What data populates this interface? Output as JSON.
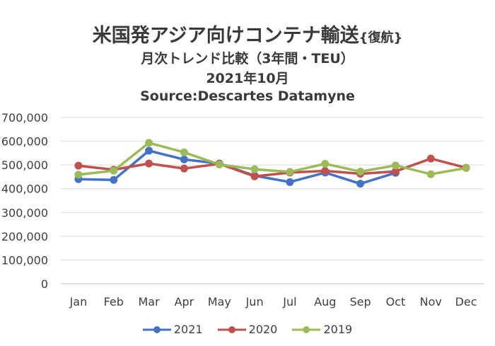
{
  "chart_data": {
    "type": "line",
    "title": "米国発アジア向けコンテナ輸送",
    "title_suffix": "{復航}",
    "subtitle_lines": [
      "月次トレンド比較（3年間・TEU）",
      "2021年10月",
      "Source:Descartes Datamyne"
    ],
    "categories": [
      "Jan",
      "Feb",
      "Mar",
      "Apr",
      "May",
      "Jun",
      "Jul",
      "Aug",
      "Sep",
      "Oct",
      "Nov",
      "Dec"
    ],
    "ylim": [
      0,
      700000
    ],
    "yticks": [
      "0",
      "100,000",
      "200,000",
      "300,000",
      "400,000",
      "500,000",
      "600,000",
      "700,000"
    ],
    "grid": true,
    "legend_position": "bottom",
    "series": [
      {
        "name": "2021",
        "color": "#4472C4",
        "values": [
          440000,
          437000,
          560000,
          523000,
          506000,
          455000,
          428000,
          468000,
          421000,
          467000,
          null,
          null
        ]
      },
      {
        "name": "2020",
        "color": "#C0504D",
        "values": [
          497000,
          480000,
          506000,
          485000,
          505000,
          452000,
          468000,
          475000,
          463000,
          473000,
          527000,
          488000
        ]
      },
      {
        "name": "2019",
        "color": "#9BBB59",
        "values": [
          459000,
          476000,
          593000,
          553000,
          502000,
          482000,
          471000,
          505000,
          472000,
          498000,
          461000,
          487000
        ]
      }
    ]
  }
}
